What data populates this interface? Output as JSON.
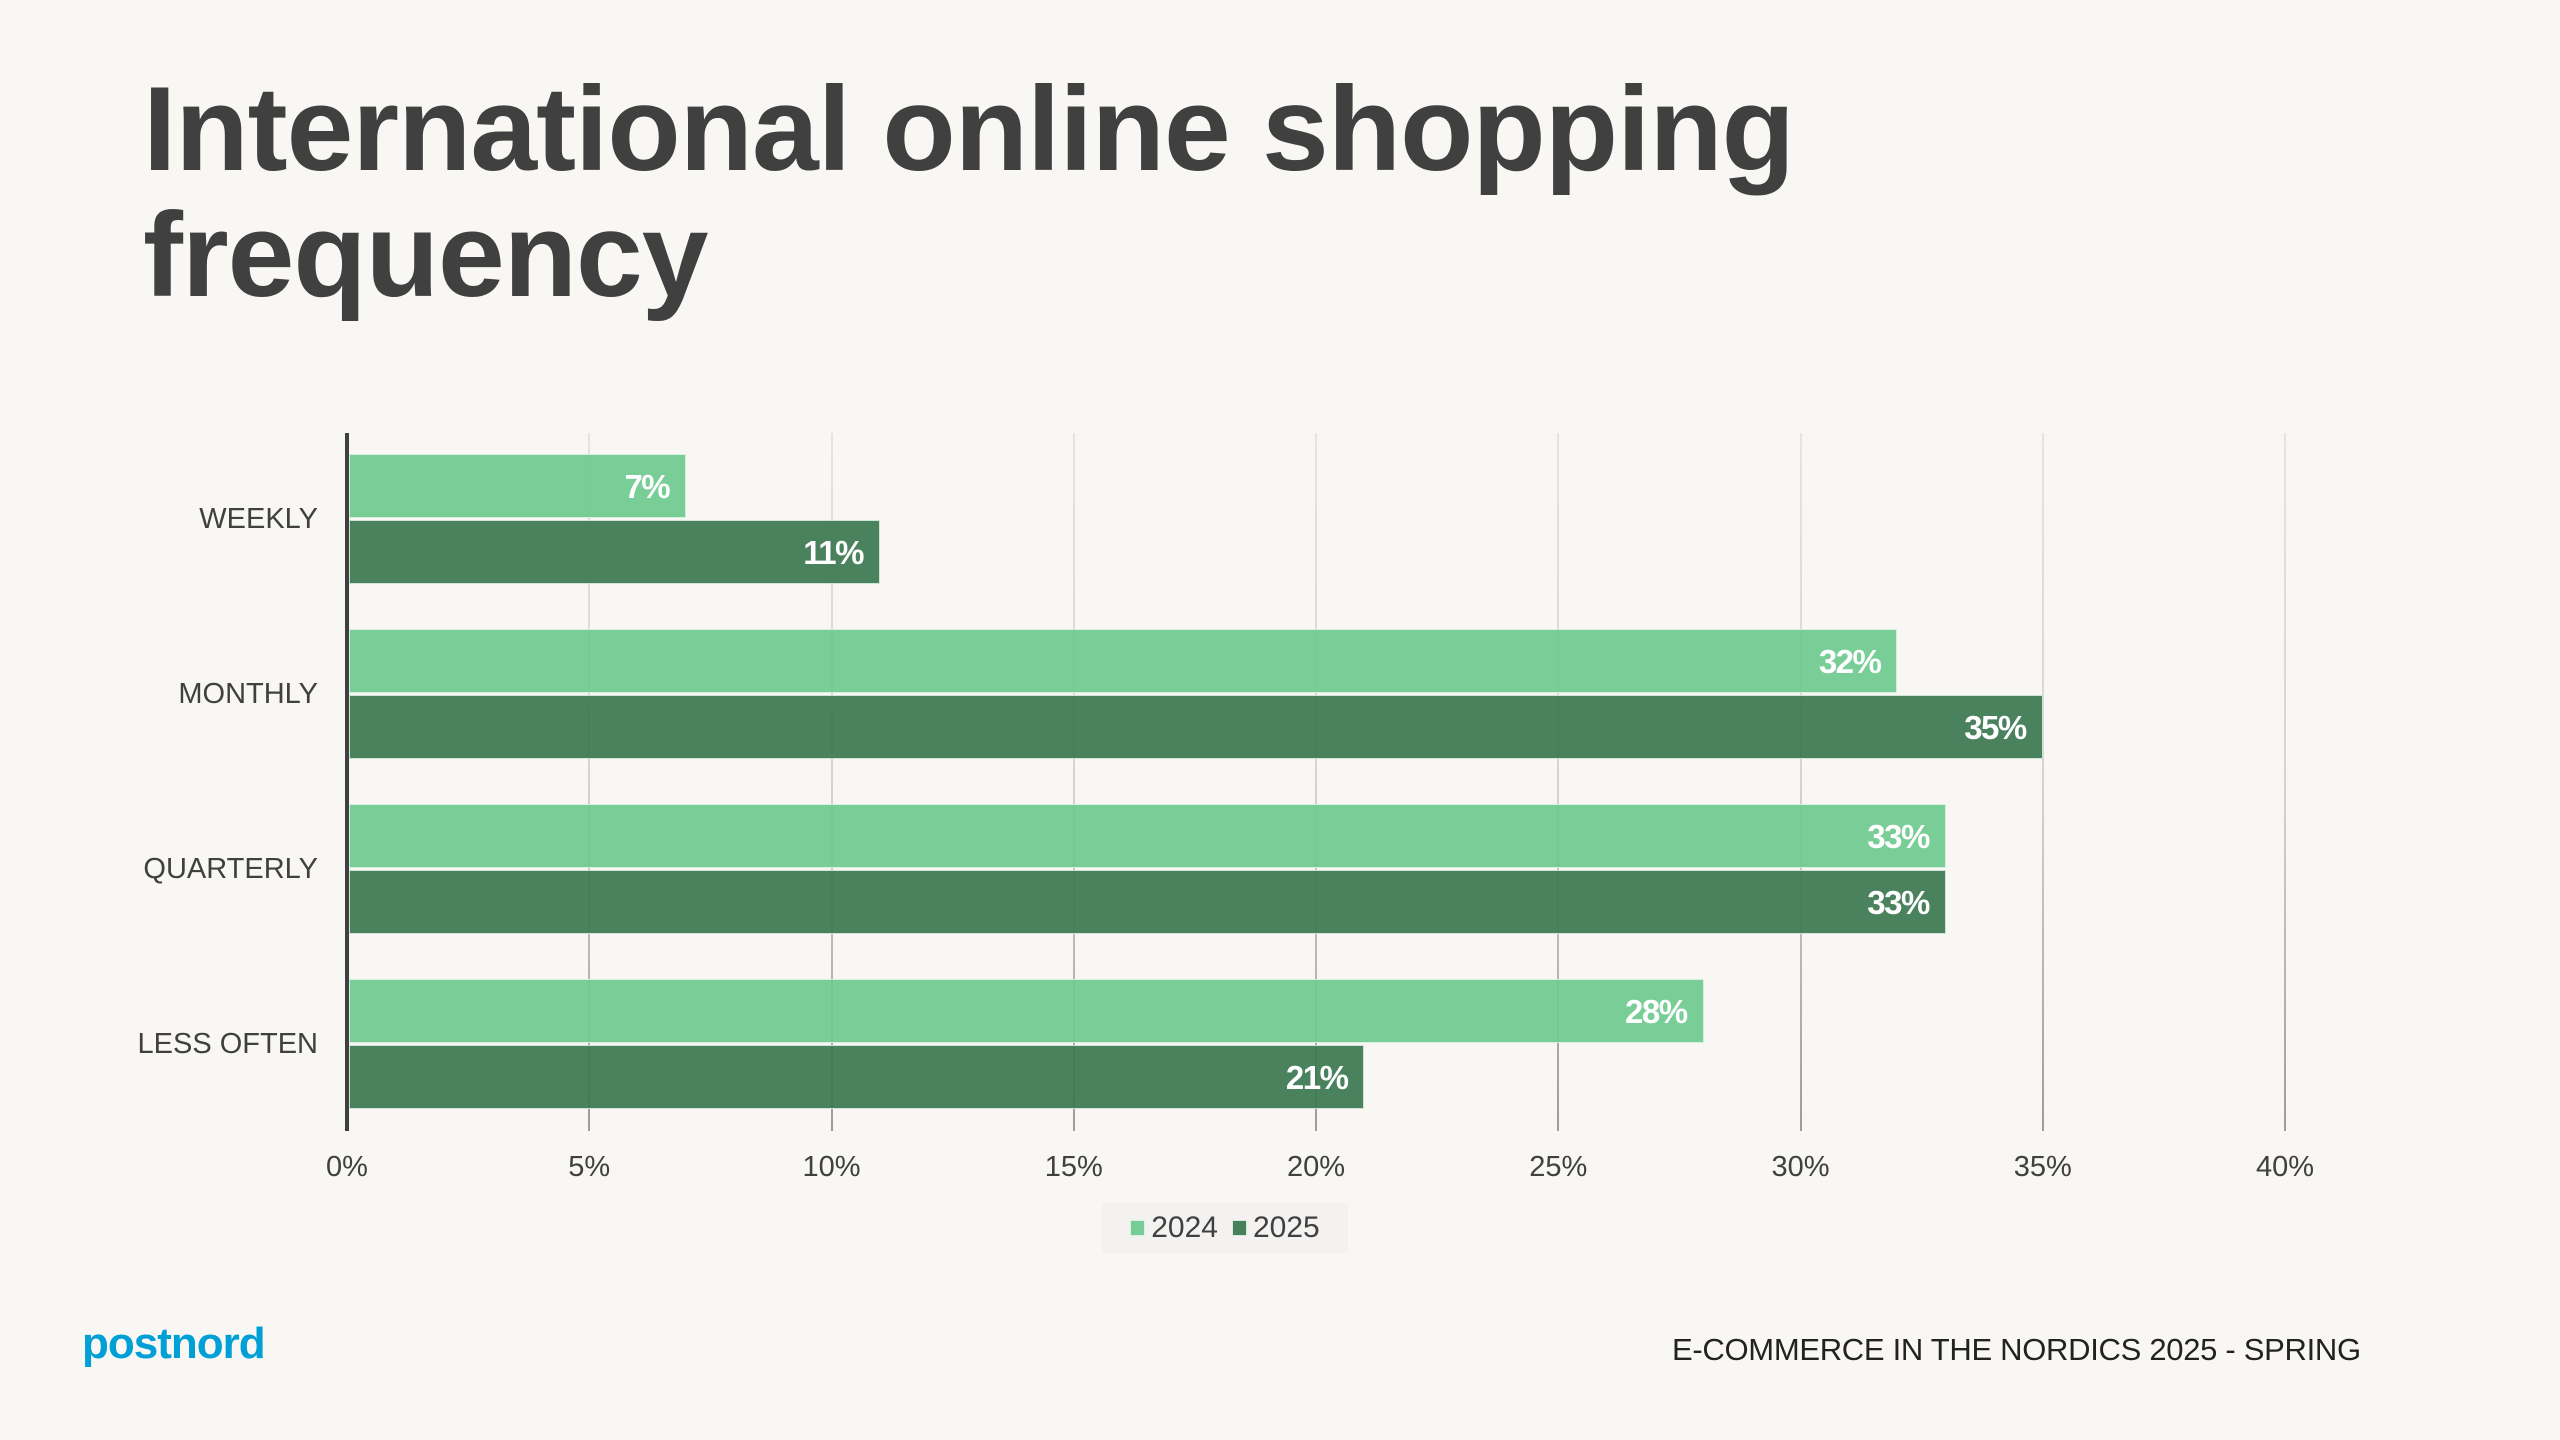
{
  "slide": {
    "title_line1": "International online shopping",
    "title_line2": "frequency",
    "logo": "postnord",
    "footer": "E-COMMERCE IN THE NORDICS 2025 - SPRING"
  },
  "colors": {
    "background": "#f8f7f3",
    "series_2024": "#76cd96",
    "series_2025": "#47805b",
    "text": "#404040",
    "logo": "#00a0d6"
  },
  "legend": [
    {
      "label": "2024",
      "color": "#76cd96"
    },
    {
      "label": "2025",
      "color": "#47805b"
    }
  ],
  "axis": {
    "ticks": [
      "0%",
      "5%",
      "10%",
      "15%",
      "20%",
      "25%",
      "30%",
      "35%",
      "40%"
    ]
  },
  "categories": [
    {
      "label": "WEEKLY",
      "v2024": "7%",
      "v2025": "11%"
    },
    {
      "label": "MONTHLY",
      "v2024": "32%",
      "v2025": "35%"
    },
    {
      "label": "QUARTERLY",
      "v2024": "33%",
      "v2025": "33%"
    },
    {
      "label": "LESS OFTEN",
      "v2024": "28%",
      "v2025": "21%"
    }
  ],
  "chart_data": {
    "type": "bar",
    "orientation": "horizontal",
    "title": "International online shopping frequency",
    "categories": [
      "WEEKLY",
      "MONTHLY",
      "QUARTERLY",
      "LESS OFTEN"
    ],
    "series": [
      {
        "name": "2024",
        "values": [
          7,
          32,
          33,
          28
        ],
        "color": "#76cd96"
      },
      {
        "name": "2025",
        "values": [
          11,
          35,
          33,
          21
        ],
        "color": "#47805b"
      }
    ],
    "xlabel": "",
    "ylabel": "",
    "xlim": [
      0,
      40
    ],
    "x_ticks": [
      0,
      5,
      10,
      15,
      20,
      25,
      30,
      35,
      40
    ],
    "tick_format": "percent",
    "grid": "vertical",
    "data_labels": true,
    "legend_position": "bottom"
  }
}
